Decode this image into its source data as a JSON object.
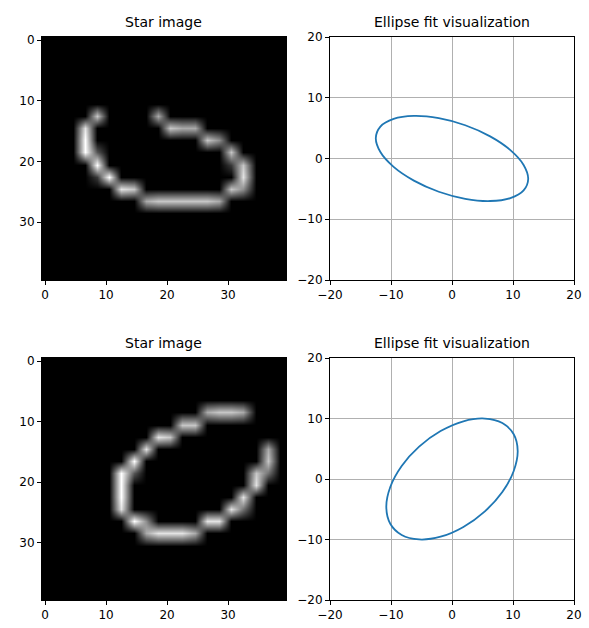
{
  "chart_data": [
    {
      "type": "heatmap",
      "title": "Star image",
      "color": "gray",
      "x": [
        0.5,
        2.5,
        4.5,
        6.5,
        8.5,
        10.5,
        12.5,
        14.5,
        16.5,
        18.5,
        20.5,
        22.5,
        24.5,
        26.5,
        28.5,
        30.5,
        32.5,
        34.5,
        36.5,
        38.5
      ],
      "y": [
        0.5,
        2.5,
        4.5,
        6.5,
        8.5,
        10.5,
        12.5,
        14.5,
        16.5,
        18.5,
        20.5,
        22.5,
        24.5,
        26.5,
        28.5,
        30.5,
        32.5,
        34.5,
        36.5,
        38.5
      ],
      "cells": [
        [
          0,
          0,
          0,
          0,
          0,
          0,
          0,
          0,
          0,
          0,
          0,
          0,
          0,
          0,
          0,
          0,
          0,
          0,
          0,
          0
        ],
        [
          0,
          0,
          0,
          0,
          0,
          0,
          0,
          0,
          0,
          0,
          0,
          0,
          0,
          0,
          0,
          0,
          0,
          0,
          0,
          0
        ],
        [
          0,
          0,
          0,
          0,
          0,
          0,
          0,
          0,
          0,
          0,
          0,
          0,
          0,
          0,
          0,
          0,
          0,
          0,
          0,
          0
        ],
        [
          0,
          0,
          0,
          0,
          0,
          0,
          0,
          0,
          0,
          0,
          0,
          0,
          0,
          0,
          0,
          0,
          0,
          0,
          0,
          0
        ],
        [
          0,
          0,
          0,
          0,
          0,
          0,
          0,
          0,
          0,
          0,
          0,
          0,
          0,
          0,
          0,
          0,
          0,
          0,
          0,
          0
        ],
        [
          0,
          0,
          0,
          0,
          0,
          0,
          0,
          0,
          0,
          0,
          0,
          0,
          0,
          0,
          0,
          0,
          0,
          0,
          0,
          0
        ],
        [
          0,
          0,
          0,
          0,
          7,
          0,
          0,
          0,
          0,
          6,
          0,
          0,
          0,
          0,
          0,
          0,
          0,
          0,
          0,
          0
        ],
        [
          0,
          0,
          0,
          8,
          0,
          0,
          0,
          0,
          0,
          0,
          7,
          6,
          6,
          0,
          0,
          0,
          0,
          0,
          0,
          0
        ],
        [
          0,
          0,
          0,
          9,
          0,
          0,
          0,
          0,
          0,
          0,
          0,
          0,
          0,
          7,
          5,
          0,
          0,
          0,
          0,
          0
        ],
        [
          0,
          0,
          0,
          9,
          3,
          0,
          0,
          0,
          0,
          0,
          0,
          0,
          0,
          0,
          0,
          7,
          0,
          0,
          0,
          0
        ],
        [
          0,
          0,
          0,
          0,
          9,
          0,
          0,
          0,
          0,
          0,
          0,
          0,
          0,
          0,
          0,
          2,
          7,
          0,
          0,
          0
        ],
        [
          0,
          0,
          0,
          0,
          2,
          9,
          0,
          0,
          0,
          0,
          0,
          0,
          0,
          0,
          0,
          0,
          8,
          0,
          0,
          0
        ],
        [
          0,
          0,
          0,
          0,
          0,
          0,
          8,
          7,
          0,
          0,
          0,
          0,
          0,
          0,
          0,
          7,
          5,
          0,
          0,
          0
        ],
        [
          0,
          0,
          0,
          0,
          0,
          0,
          0,
          0,
          6,
          7,
          7,
          7,
          7,
          7,
          6,
          0,
          0,
          0,
          0,
          0
        ],
        [
          0,
          0,
          0,
          0,
          0,
          0,
          0,
          0,
          0,
          0,
          0,
          0,
          0,
          0,
          0,
          0,
          0,
          0,
          0,
          0
        ],
        [
          0,
          0,
          0,
          0,
          0,
          0,
          0,
          0,
          0,
          0,
          0,
          0,
          0,
          0,
          0,
          0,
          0,
          0,
          0,
          0
        ],
        [
          0,
          0,
          0,
          0,
          0,
          0,
          0,
          0,
          0,
          0,
          0,
          0,
          0,
          0,
          0,
          0,
          0,
          0,
          0,
          0
        ],
        [
          0,
          0,
          0,
          0,
          0,
          0,
          0,
          0,
          0,
          0,
          0,
          0,
          0,
          0,
          0,
          0,
          0,
          0,
          0,
          0
        ],
        [
          0,
          0,
          0,
          0,
          0,
          0,
          0,
          0,
          0,
          0,
          0,
          0,
          0,
          0,
          0,
          0,
          0,
          0,
          0,
          0
        ],
        [
          0,
          0,
          0,
          0,
          0,
          0,
          0,
          0,
          0,
          0,
          0,
          0,
          0,
          0,
          0,
          0,
          0,
          0,
          0,
          0
        ]
      ],
      "xlim": [
        -0.5,
        39.5
      ],
      "ylim": [
        39.5,
        -0.5
      ],
      "xticks": [
        0,
        10,
        20,
        30
      ],
      "yticks": [
        0,
        10,
        20,
        30
      ],
      "grid": false
    },
    {
      "type": "line",
      "title": "Ellipse fit visualization",
      "color": "#1f77b4",
      "x": [
        12.49,
        11.74,
        9.57,
        6.25,
        2.17,
        -2.17,
        -6.25,
        -9.57,
        -11.74,
        -12.49,
        -11.74,
        -9.57,
        -6.25,
        -2.17,
        2.17,
        6.25,
        9.57,
        11.74,
        12.49
      ],
      "values": [
        -3.36,
        -1.06,
        1.38,
        3.64,
        5.47,
        6.63,
        7.0,
        6.52,
        5.26,
        3.36,
        1.06,
        -1.38,
        -3.64,
        -5.47,
        -6.63,
        -7.0,
        -6.52,
        -5.26,
        -3.36
      ],
      "xlim": [
        -20,
        20
      ],
      "ylim": [
        -20,
        20
      ],
      "xticks": [
        {
          "value": -20,
          "label": "−20"
        },
        {
          "value": -10,
          "label": "−10"
        },
        0,
        10,
        20
      ],
      "yticks": [
        {
          "value": -20,
          "label": "−20"
        },
        {
          "value": -10,
          "label": "−10"
        },
        0,
        10,
        20
      ],
      "grid": true
    },
    {
      "type": "heatmap",
      "title": "Star image",
      "color": "gray",
      "x": [
        0.5,
        2.5,
        4.5,
        6.5,
        8.5,
        10.5,
        12.5,
        14.5,
        16.5,
        18.5,
        20.5,
        22.5,
        24.5,
        26.5,
        28.5,
        30.5,
        32.5,
        34.5,
        36.5,
        38.5
      ],
      "y": [
        0.5,
        2.5,
        4.5,
        6.5,
        8.5,
        10.5,
        12.5,
        14.5,
        16.5,
        18.5,
        20.5,
        22.5,
        24.5,
        26.5,
        28.5,
        30.5,
        32.5,
        34.5,
        36.5,
        38.5
      ],
      "cells": [
        [
          0,
          0,
          0,
          0,
          0,
          0,
          0,
          0,
          0,
          0,
          0,
          0,
          0,
          0,
          0,
          0,
          0,
          0,
          0,
          0
        ],
        [
          0,
          0,
          0,
          0,
          0,
          0,
          0,
          0,
          0,
          0,
          0,
          0,
          0,
          0,
          0,
          0,
          0,
          0,
          0,
          0
        ],
        [
          0,
          0,
          0,
          0,
          0,
          0,
          0,
          0,
          0,
          0,
          0,
          0,
          0,
          0,
          0,
          0,
          0,
          0,
          0,
          0
        ],
        [
          0,
          0,
          0,
          0,
          0,
          0,
          0,
          0,
          0,
          0,
          0,
          0,
          0,
          0,
          0,
          0,
          0,
          0,
          0,
          0
        ],
        [
          0,
          0,
          0,
          0,
          0,
          0,
          0,
          0,
          0,
          0,
          0,
          0,
          0,
          6,
          7,
          7,
          6,
          0,
          0,
          0
        ],
        [
          0,
          0,
          0,
          0,
          0,
          0,
          0,
          0,
          0,
          0,
          0,
          7,
          7,
          0,
          0,
          0,
          0,
          0,
          0,
          0
        ],
        [
          0,
          0,
          0,
          0,
          0,
          0,
          0,
          0,
          0,
          8,
          7,
          0,
          0,
          0,
          0,
          0,
          0,
          0,
          0,
          0
        ],
        [
          0,
          0,
          0,
          0,
          0,
          0,
          0,
          0,
          8,
          0,
          0,
          0,
          0,
          0,
          0,
          0,
          0,
          0,
          6,
          0
        ],
        [
          0,
          0,
          0,
          0,
          0,
          0,
          0,
          9,
          0,
          0,
          0,
          0,
          0,
          0,
          0,
          0,
          0,
          0,
          7,
          0
        ],
        [
          0,
          0,
          0,
          0,
          0,
          0,
          9,
          3,
          0,
          0,
          0,
          0,
          0,
          0,
          0,
          0,
          0,
          7,
          4,
          0
        ],
        [
          0,
          0,
          0,
          0,
          0,
          0,
          9,
          0,
          0,
          0,
          0,
          0,
          0,
          0,
          0,
          0,
          0,
          8,
          0,
          0
        ],
        [
          0,
          0,
          0,
          0,
          0,
          0,
          9,
          0,
          0,
          0,
          0,
          0,
          0,
          0,
          0,
          0,
          8,
          0,
          0,
          0
        ],
        [
          0,
          0,
          0,
          0,
          0,
          0,
          8,
          0,
          0,
          0,
          0,
          0,
          0,
          0,
          0,
          8,
          4,
          0,
          0,
          0
        ],
        [
          0,
          0,
          0,
          0,
          0,
          0,
          0,
          9,
          5,
          0,
          0,
          0,
          0,
          8,
          8,
          0,
          0,
          0,
          0,
          0
        ],
        [
          0,
          0,
          0,
          0,
          0,
          0,
          0,
          0,
          6,
          8,
          8,
          8,
          6,
          0,
          0,
          0,
          0,
          0,
          0,
          0
        ],
        [
          0,
          0,
          0,
          0,
          0,
          0,
          0,
          0,
          0,
          0,
          0,
          0,
          0,
          0,
          0,
          0,
          0,
          0,
          0,
          0
        ],
        [
          0,
          0,
          0,
          0,
          0,
          0,
          0,
          0,
          0,
          0,
          0,
          0,
          0,
          0,
          0,
          0,
          0,
          0,
          0,
          0
        ],
        [
          0,
          0,
          0,
          0,
          0,
          0,
          0,
          0,
          0,
          0,
          0,
          0,
          0,
          0,
          0,
          0,
          0,
          0,
          0,
          0
        ],
        [
          0,
          0,
          0,
          0,
          0,
          0,
          0,
          0,
          0,
          0,
          0,
          0,
          0,
          0,
          0,
          0,
          0,
          0,
          0,
          0
        ],
        [
          0,
          0,
          0,
          0,
          0,
          0,
          0,
          0,
          0,
          0,
          0,
          0,
          0,
          0,
          0,
          0,
          0,
          0,
          0,
          0
        ]
      ],
      "xlim": [
        -0.5,
        39.5
      ],
      "ylim": [
        39.5,
        -0.5
      ],
      "xticks": [
        0,
        10,
        20,
        30
      ],
      "yticks": [
        0,
        10,
        20,
        30
      ],
      "grid": false
    },
    {
      "type": "line",
      "title": "Ellipse fit visualization",
      "color": "#1f77b4",
      "x": [
        10.77,
        10.12,
        8.25,
        5.39,
        1.87,
        -1.87,
        -5.39,
        -8.25,
        -10.12,
        -10.77,
        -10.12,
        -8.25,
        -5.39,
        -1.87,
        1.87,
        5.39,
        8.25,
        10.12,
        10.77
      ],
      "values": [
        4.64,
        7.39,
        9.25,
        9.99,
        9.54,
        7.92,
        5.35,
        2.15,
        -1.33,
        -4.64,
        -7.39,
        -9.25,
        -9.99,
        -9.54,
        -7.92,
        -5.35,
        -2.15,
        1.33,
        4.64
      ],
      "xlim": [
        -20,
        20
      ],
      "ylim": [
        -20,
        20
      ],
      "xticks": [
        {
          "value": -20,
          "label": "−20"
        },
        {
          "value": -10,
          "label": "−10"
        },
        0,
        10,
        20
      ],
      "yticks": [
        {
          "value": -20,
          "label": "−20"
        },
        {
          "value": -10,
          "label": "−10"
        },
        0,
        10,
        20
      ],
      "grid": true
    }
  ]
}
